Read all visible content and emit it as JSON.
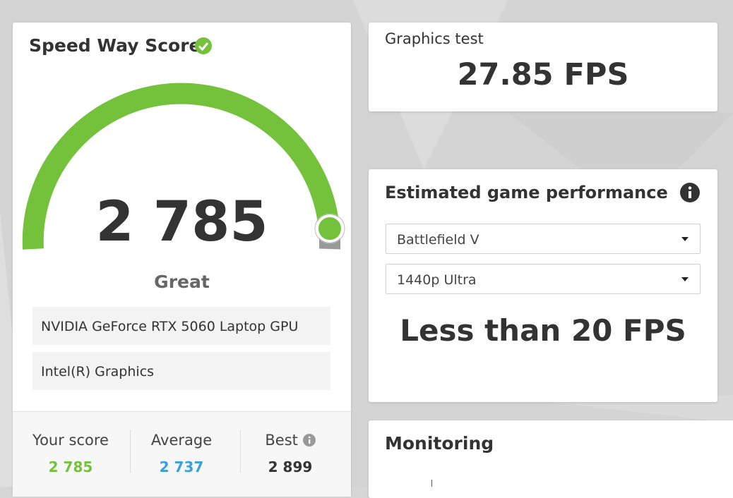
{
  "score_card": {
    "title": "Speed Way Score",
    "score": "2 785",
    "rating": "Great",
    "devices": [
      "NVIDIA GeForce RTX 5060 Laptop GPU",
      "Intel(R) Graphics"
    ],
    "comparison": [
      {
        "label": "Your score",
        "value": "2 785"
      },
      {
        "label": "Average",
        "value": "2 737"
      },
      {
        "label": "Best",
        "value": "2 899"
      }
    ]
  },
  "graphics_test": {
    "title": "Graphics test",
    "value": "27.85 FPS"
  },
  "game_performance": {
    "title": "Estimated game performance",
    "game": "Battlefield V",
    "preset": "1440p Ultra",
    "result": "Less than 20 FPS"
  },
  "monitoring": {
    "title": "Monitoring"
  }
}
